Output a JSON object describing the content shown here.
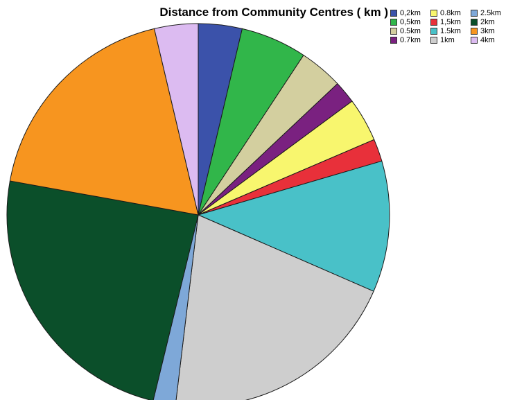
{
  "chart_data": {
    "type": "pie",
    "title": "Distance from Community Centres ( km )",
    "legend_position": "top-right",
    "slices": [
      {
        "label": "0,2km",
        "value": 3.7,
        "color": "#3b52aa"
      },
      {
        "label": "0,5km",
        "value": 5.6,
        "color": "#31b64a"
      },
      {
        "label": "0.5km",
        "value": 3.7,
        "color": "#d3cf9f"
      },
      {
        "label": "0.7km",
        "value": 1.9,
        "color": "#7a2180"
      },
      {
        "label": "0.8km",
        "value": 3.7,
        "color": "#f8f66e"
      },
      {
        "label": "1,5km",
        "value": 1.9,
        "color": "#e8303a"
      },
      {
        "label": "1.5km",
        "value": 11.1,
        "color": "#49c1c8"
      },
      {
        "label": "1km",
        "value": 20.4,
        "color": "#cecece"
      },
      {
        "label": "2.5km",
        "value": 1.9,
        "color": "#7ea8d8"
      },
      {
        "label": "2km",
        "value": 24.1,
        "color": "#0b4f2a"
      },
      {
        "label": "3km",
        "value": 18.5,
        "color": "#f7951f"
      },
      {
        "label": "4km",
        "value": 3.7,
        "color": "#dcbbf1"
      }
    ],
    "legend_order": [
      "0,2km",
      "0.8km",
      "2.5km",
      "0,5km",
      "1,5km",
      "2km",
      "0.5km",
      "1.5km",
      "3km",
      "0.7km",
      "1km",
      "4km"
    ]
  }
}
